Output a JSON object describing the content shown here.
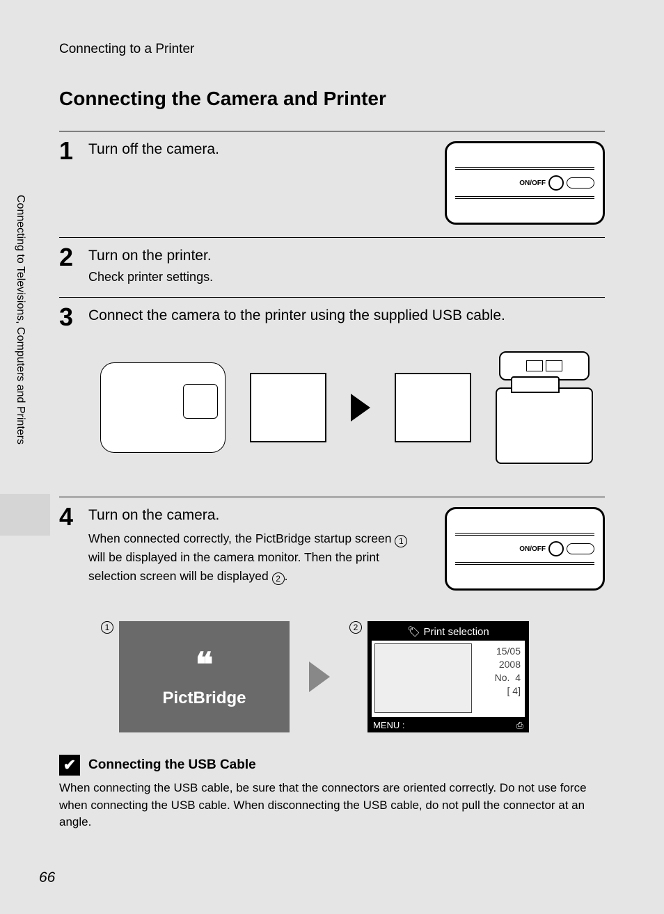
{
  "breadcrumb": "Connecting to a Printer",
  "title": "Connecting the Camera and Printer",
  "side_tab": "Connecting to Televisions, Computers and Printers",
  "steps": {
    "s1": {
      "num": "1",
      "title": "Turn off the camera."
    },
    "s2": {
      "num": "2",
      "title": "Turn on the printer.",
      "sub": "Check printer settings."
    },
    "s3": {
      "num": "3",
      "title": "Connect the camera to the printer using the supplied USB cable."
    },
    "s4": {
      "num": "4",
      "title": "Turn on the camera.",
      "desc_a": "When connected correctly, the PictBridge startup screen ",
      "desc_b": " will be displayed in the camera monitor. Then the print selection screen will be displayed ",
      "desc_c": ".",
      "c1": "1",
      "c2": "2"
    }
  },
  "onoff_label": "ON/OFF",
  "screens": {
    "c1": "1",
    "c2": "2",
    "pictbridge": "PictBridge",
    "pb_glyph": "❝",
    "print_sel_title": "Print selection",
    "date1": "15/05",
    "date2": "2008",
    "no_label": "No.",
    "no_val": "4",
    "bracket": "[      4]",
    "menu_l": "MENU :",
    "menu_r": "⎙"
  },
  "note": {
    "icon": "✔",
    "title": "Connecting the USB Cable",
    "body": "When connecting the USB cable, be sure that the connectors are oriented correctly. Do not use force when connecting the USB cable. When disconnecting the USB cable, do not pull the connector at an angle."
  },
  "page_number": "66",
  "colors": {
    "page_bg": "#e5e5e5",
    "text": "#000000",
    "pb_bg": "#6a6a6a",
    "print_bg": "#000000"
  }
}
